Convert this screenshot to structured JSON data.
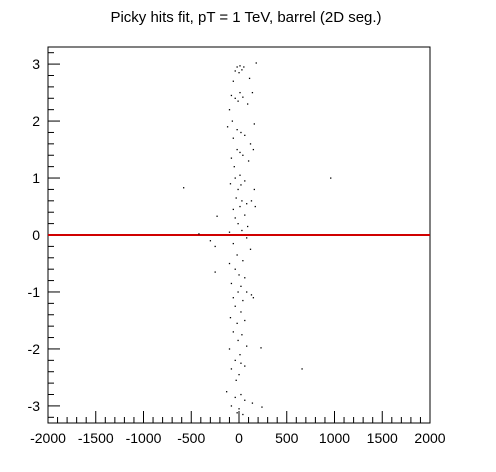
{
  "chart_data": {
    "type": "scatter",
    "title": "Picky hits fit, pT = 1 TeV, barrel (2D seg.)",
    "xlabel": "",
    "ylabel": "",
    "xlim": [
      -2000,
      2000
    ],
    "ylim": [
      -3.3,
      3.3
    ],
    "x_ticks": [
      -2000,
      -1500,
      -1000,
      -500,
      0,
      500,
      1000,
      1500,
      2000
    ],
    "x_tick_labels": [
      "-2000",
      "-1500",
      "-1000",
      "-500",
      "0",
      "500",
      "1000",
      "1500",
      "2000"
    ],
    "y_ticks": [
      -3,
      -2,
      -1,
      0,
      1,
      2,
      3
    ],
    "y_tick_labels": [
      "-3",
      "-2",
      "-1",
      "0",
      "1",
      "2",
      "3"
    ],
    "grid": false,
    "reference_line": {
      "y": 0,
      "color": "#d00000"
    },
    "marker_color": "#000000",
    "series": [
      {
        "points": [
          [
            -20,
            2.95
          ],
          [
            10,
            2.97
          ],
          [
            30,
            2.9
          ],
          [
            -40,
            2.88
          ],
          [
            50,
            2.95
          ],
          [
            180,
            3.02
          ],
          [
            0,
            2.85
          ],
          [
            -60,
            2.7
          ],
          [
            110,
            2.75
          ],
          [
            -80,
            2.45
          ],
          [
            -40,
            2.4
          ],
          [
            10,
            2.5
          ],
          [
            40,
            2.42
          ],
          [
            140,
            2.5
          ],
          [
            90,
            2.3
          ],
          [
            -10,
            2.35
          ],
          [
            -100,
            2.2
          ],
          [
            -70,
            2.0
          ],
          [
            -120,
            1.9
          ],
          [
            -20,
            1.85
          ],
          [
            20,
            1.8
          ],
          [
            160,
            1.95
          ],
          [
            60,
            1.75
          ],
          [
            -60,
            1.7
          ],
          [
            120,
            1.6
          ],
          [
            -20,
            1.5
          ],
          [
            10,
            1.45
          ],
          [
            -80,
            1.35
          ],
          [
            40,
            1.4
          ],
          [
            150,
            1.5
          ],
          [
            100,
            1.3
          ],
          [
            -50,
            1.2
          ],
          [
            -40,
            1.0
          ],
          [
            10,
            1.05
          ],
          [
            60,
            0.95
          ],
          [
            -90,
            0.9
          ],
          [
            20,
            0.88
          ],
          [
            160,
            0.8
          ],
          [
            -10,
            0.8
          ],
          [
            -580,
            0.83
          ],
          [
            960,
            1.0
          ],
          [
            -30,
            0.65
          ],
          [
            30,
            0.6
          ],
          [
            80,
            0.55
          ],
          [
            130,
            0.6
          ],
          [
            -60,
            0.45
          ],
          [
            10,
            0.5
          ],
          [
            170,
            0.5
          ],
          [
            -230,
            0.33
          ],
          [
            -40,
            0.3
          ],
          [
            60,
            0.35
          ],
          [
            -10,
            0.2
          ],
          [
            90,
            0.15
          ],
          [
            -100,
            0.05
          ],
          [
            30,
            0.08
          ],
          [
            -420,
            0.02
          ],
          [
            -300,
            -0.1
          ],
          [
            -60,
            -0.15
          ],
          [
            80,
            -0.05
          ],
          [
            -250,
            -0.2
          ],
          [
            120,
            -0.25
          ],
          [
            -20,
            -0.35
          ],
          [
            -100,
            -0.5
          ],
          [
            40,
            -0.45
          ],
          [
            -40,
            -0.6
          ],
          [
            0,
            -0.7
          ],
          [
            -250,
            -0.65
          ],
          [
            60,
            -0.75
          ],
          [
            -80,
            -0.85
          ],
          [
            20,
            -0.9
          ],
          [
            -10,
            -1.0
          ],
          [
            80,
            -1.0
          ],
          [
            -60,
            -1.1
          ],
          [
            40,
            -1.15
          ],
          [
            130,
            -1.05
          ],
          [
            -40,
            -1.25
          ],
          [
            20,
            -1.35
          ],
          [
            -90,
            -1.45
          ],
          [
            150,
            -1.1
          ],
          [
            60,
            -1.5
          ],
          [
            -20,
            -1.55
          ],
          [
            -60,
            -1.7
          ],
          [
            30,
            -1.75
          ],
          [
            -10,
            -1.85
          ],
          [
            80,
            -1.95
          ],
          [
            -100,
            -2.0
          ],
          [
            10,
            -2.1
          ],
          [
            -40,
            -2.2
          ],
          [
            20,
            -2.25
          ],
          [
            -80,
            -2.35
          ],
          [
            60,
            -2.3
          ],
          [
            0,
            -2.45
          ],
          [
            -30,
            -2.55
          ],
          [
            230,
            -1.98
          ],
          [
            660,
            -2.35
          ],
          [
            -130,
            -2.75
          ],
          [
            -40,
            -2.85
          ],
          [
            20,
            -2.8
          ],
          [
            60,
            -2.9
          ],
          [
            -80,
            -3.0
          ],
          [
            0,
            -3.05
          ],
          [
            140,
            -2.95
          ],
          [
            240,
            -3.02
          ],
          [
            -20,
            -3.12
          ],
          [
            40,
            -3.15
          ]
        ]
      }
    ]
  }
}
